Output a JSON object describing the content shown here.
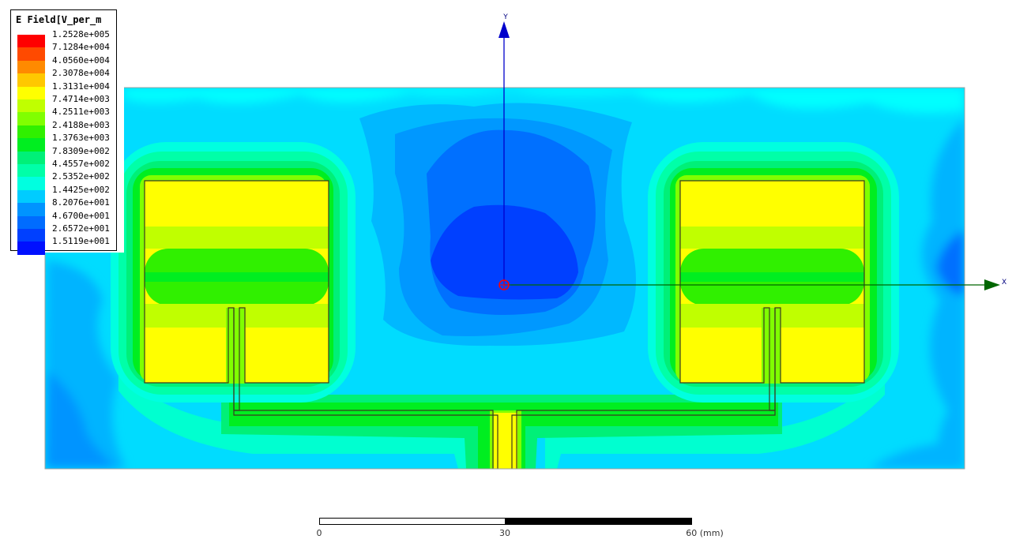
{
  "legend": {
    "title": "E Field[V_per_m",
    "entries": [
      {
        "value": "1.2528e+005",
        "color": "#ff0000"
      },
      {
        "value": "7.1284e+004",
        "color": "#ff4a00"
      },
      {
        "value": "4.0560e+004",
        "color": "#ff8a00"
      },
      {
        "value": "2.3078e+004",
        "color": "#ffc800"
      },
      {
        "value": "1.3131e+004",
        "color": "#ffff00"
      },
      {
        "value": "7.4714e+003",
        "color": "#c0ff00"
      },
      {
        "value": "4.2511e+003",
        "color": "#80ff00"
      },
      {
        "value": "2.4188e+003",
        "color": "#30f000"
      },
      {
        "value": "1.3763e+003",
        "color": "#00ee20"
      },
      {
        "value": "7.8309e+002",
        "color": "#00f078"
      },
      {
        "value": "4.4557e+002",
        "color": "#00ffa8"
      },
      {
        "value": "2.5352e+002",
        "color": "#00ffe0"
      },
      {
        "value": "1.4425e+002",
        "color": "#00ccff"
      },
      {
        "value": "8.2076e+001",
        "color": "#0094ff"
      },
      {
        "value": "4.6700e+001",
        "color": "#006cff"
      },
      {
        "value": "2.6572e+001",
        "color": "#0040ff"
      },
      {
        "value": "1.5119e+001",
        "color": "#0010ff"
      }
    ]
  },
  "axes": {
    "y_label": "Y",
    "x_label": "X",
    "color": "#0000cc"
  },
  "scale_bar": {
    "ticks": [
      "0",
      "30",
      "60 (mm)"
    ]
  }
}
